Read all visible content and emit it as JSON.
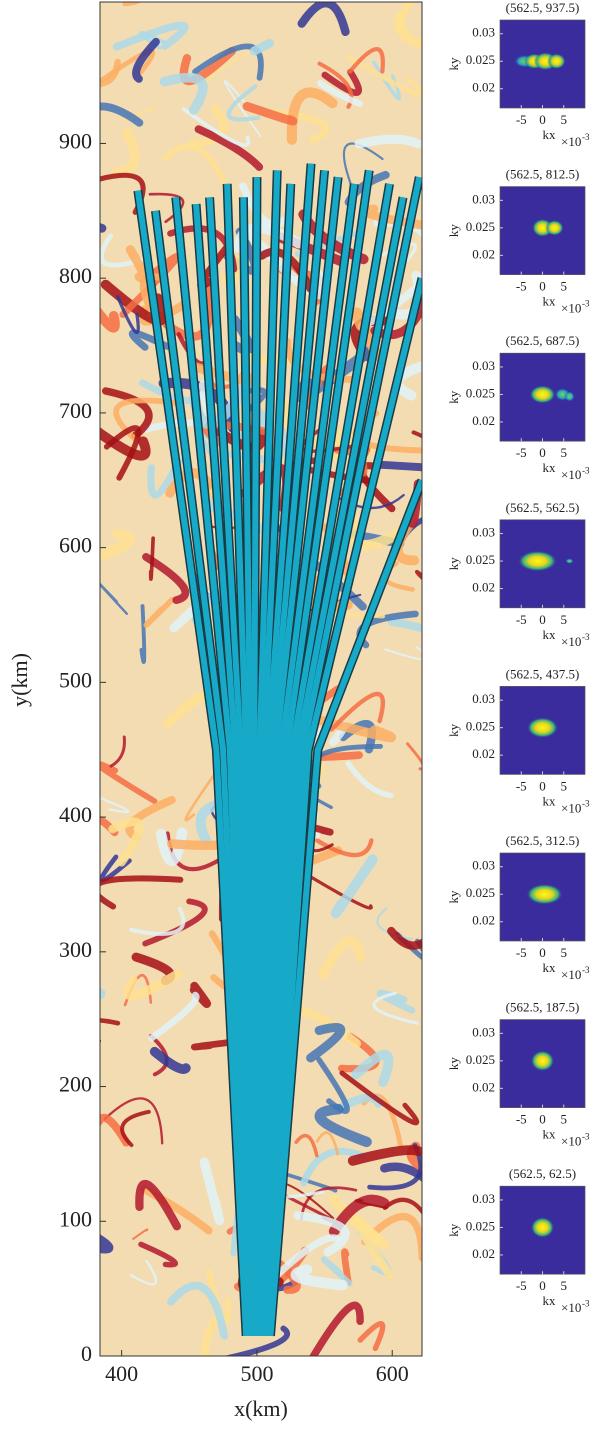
{
  "chart_data": [
    {
      "type": "line",
      "xlabel": "x(km)",
      "ylabel": "y(km)",
      "color": "#17aac8",
      "xlim": [
        384,
        622
      ],
      "ylim": [
        0,
        1005
      ],
      "xticks": [
        400,
        500,
        600
      ],
      "yticks": [
        0,
        100,
        200,
        300,
        400,
        500,
        600,
        700,
        800,
        900
      ],
      "series": [
        {
          "x": [
            492,
            470,
            412
          ],
          "y": [
            15,
            450,
            865
          ]
        },
        {
          "x": [
            493,
            475,
            425
          ],
          "y": [
            15,
            450,
            850
          ]
        },
        {
          "x": [
            494,
            480,
            440
          ],
          "y": [
            15,
            450,
            860
          ]
        },
        {
          "x": [
            495,
            484,
            455
          ],
          "y": [
            15,
            450,
            855
          ]
        },
        {
          "x": [
            496,
            488,
            465
          ],
          "y": [
            15,
            450,
            860
          ]
        },
        {
          "x": [
            497,
            492,
            478
          ],
          "y": [
            15,
            450,
            870
          ]
        },
        {
          "x": [
            498,
            495,
            490
          ],
          "y": [
            15,
            450,
            860
          ]
        },
        {
          "x": [
            499,
            498,
            500
          ],
          "y": [
            15,
            450,
            875
          ]
        },
        {
          "x": [
            500,
            502,
            515
          ],
          "y": [
            15,
            450,
            880
          ]
        },
        {
          "x": [
            501,
            505,
            525
          ],
          "y": [
            15,
            450,
            870
          ]
        },
        {
          "x": [
            502,
            508,
            540
          ],
          "y": [
            15,
            450,
            885
          ]
        },
        {
          "x": [
            503,
            511,
            550
          ],
          "y": [
            15,
            450,
            880
          ]
        },
        {
          "x": [
            504,
            514,
            560
          ],
          "y": [
            15,
            450,
            875
          ]
        },
        {
          "x": [
            505,
            518,
            572
          ],
          "y": [
            15,
            450,
            870
          ]
        },
        {
          "x": [
            506,
            522,
            583
          ],
          "y": [
            15,
            450,
            880
          ]
        },
        {
          "x": [
            507,
            526,
            598
          ],
          "y": [
            15,
            450,
            870
          ]
        },
        {
          "x": [
            508,
            530,
            608
          ],
          "y": [
            15,
            450,
            860
          ]
        },
        {
          "x": [
            509,
            534,
            620
          ],
          "y": [
            15,
            450,
            875
          ]
        },
        {
          "x": [
            509,
            538,
            622
          ],
          "y": [
            15,
            450,
            800
          ]
        },
        {
          "x": [
            510,
            545,
            622
          ],
          "y": [
            15,
            450,
            650
          ]
        }
      ]
    },
    {
      "type": "heatmap",
      "title": "(562.5, 937.5)",
      "xlabel": "kx",
      "x_multiplier": "×10",
      "x_multiplier_exponent": "-3",
      "ylabel": "ky",
      "xlim": [
        -0.01,
        0.01
      ],
      "ylim": [
        0.0165,
        0.0325
      ],
      "xticks": [
        {
          "value": -0.005,
          "label": "-5"
        },
        {
          "value": 0,
          "label": "0"
        },
        {
          "value": 0.005,
          "label": "5"
        }
      ],
      "yticks": [
        0.02,
        0.025,
        0.03
      ]
    },
    {
      "type": "heatmap",
      "title": "(562.5, 812.5)",
      "xlabel": "kx",
      "x_multiplier": "×10",
      "x_multiplier_exponent": "-3",
      "ylabel": "ky",
      "xlim": [
        -0.01,
        0.01
      ],
      "ylim": [
        0.0165,
        0.0325
      ],
      "xticks": [
        {
          "value": -0.005,
          "label": "-5"
        },
        {
          "value": 0,
          "label": "0"
        },
        {
          "value": 0.005,
          "label": "5"
        }
      ],
      "yticks": [
        0.02,
        0.025,
        0.03
      ]
    },
    {
      "type": "heatmap",
      "title": "(562.5, 687.5)",
      "xlabel": "kx",
      "x_multiplier": "×10",
      "x_multiplier_exponent": "-3",
      "ylabel": "ky",
      "xlim": [
        -0.01,
        0.01
      ],
      "ylim": [
        0.0165,
        0.0325
      ],
      "xticks": [
        {
          "value": -0.005,
          "label": "-5"
        },
        {
          "value": 0,
          "label": "0"
        },
        {
          "value": 0.005,
          "label": "5"
        }
      ],
      "yticks": [
        0.02,
        0.025,
        0.03
      ]
    },
    {
      "type": "heatmap",
      "title": "(562.5, 562.5)",
      "xlabel": "kx",
      "x_multiplier": "×10",
      "x_multiplier_exponent": "-3",
      "ylabel": "ky",
      "xlim": [
        -0.01,
        0.01
      ],
      "ylim": [
        0.0165,
        0.0325
      ],
      "xticks": [
        {
          "value": -0.005,
          "label": "-5"
        },
        {
          "value": 0,
          "label": "0"
        },
        {
          "value": 0.005,
          "label": "5"
        }
      ],
      "yticks": [
        0.02,
        0.025,
        0.03
      ]
    },
    {
      "type": "heatmap",
      "title": "(562.5, 437.5)",
      "xlabel": "kx",
      "x_multiplier": "×10",
      "x_multiplier_exponent": "-3",
      "ylabel": "ky",
      "xlim": [
        -0.01,
        0.01
      ],
      "ylim": [
        0.0165,
        0.0325
      ],
      "xticks": [
        {
          "value": -0.005,
          "label": "-5"
        },
        {
          "value": 0,
          "label": "0"
        },
        {
          "value": 0.005,
          "label": "5"
        }
      ],
      "yticks": [
        0.02,
        0.025,
        0.03
      ]
    },
    {
      "type": "heatmap",
      "title": "(562.5, 312.5)",
      "xlabel": "kx",
      "x_multiplier": "×10",
      "x_multiplier_exponent": "-3",
      "ylabel": "ky",
      "xlim": [
        -0.01,
        0.01
      ],
      "ylim": [
        0.0165,
        0.0325
      ],
      "xticks": [
        {
          "value": -0.005,
          "label": "-5"
        },
        {
          "value": 0,
          "label": "0"
        },
        {
          "value": 0.005,
          "label": "5"
        }
      ],
      "yticks": [
        0.02,
        0.025,
        0.03
      ]
    },
    {
      "type": "heatmap",
      "title": "(562.5, 187.5)",
      "xlabel": "kx",
      "x_multiplier": "×10",
      "x_multiplier_exponent": "-3",
      "ylabel": "ky",
      "xlim": [
        -0.01,
        0.01
      ],
      "ylim": [
        0.0165,
        0.0325
      ],
      "xticks": [
        {
          "value": -0.005,
          "label": "-5"
        },
        {
          "value": 0,
          "label": "0"
        },
        {
          "value": 0.005,
          "label": "5"
        }
      ],
      "yticks": [
        0.02,
        0.025,
        0.03
      ]
    },
    {
      "type": "heatmap",
      "title": "(562.5, 62.5)",
      "xlabel": "kx",
      "x_multiplier": "×10",
      "x_multiplier_exponent": "-3",
      "ylabel": "ky",
      "xlim": [
        -0.01,
        0.01
      ],
      "ylim": [
        0.0165,
        0.0325
      ],
      "xticks": [
        {
          "value": -0.005,
          "label": "-5"
        },
        {
          "value": 0,
          "label": "0"
        },
        {
          "value": 0.005,
          "label": "5"
        }
      ],
      "yticks": [
        0.02,
        0.025,
        0.03
      ]
    }
  ]
}
